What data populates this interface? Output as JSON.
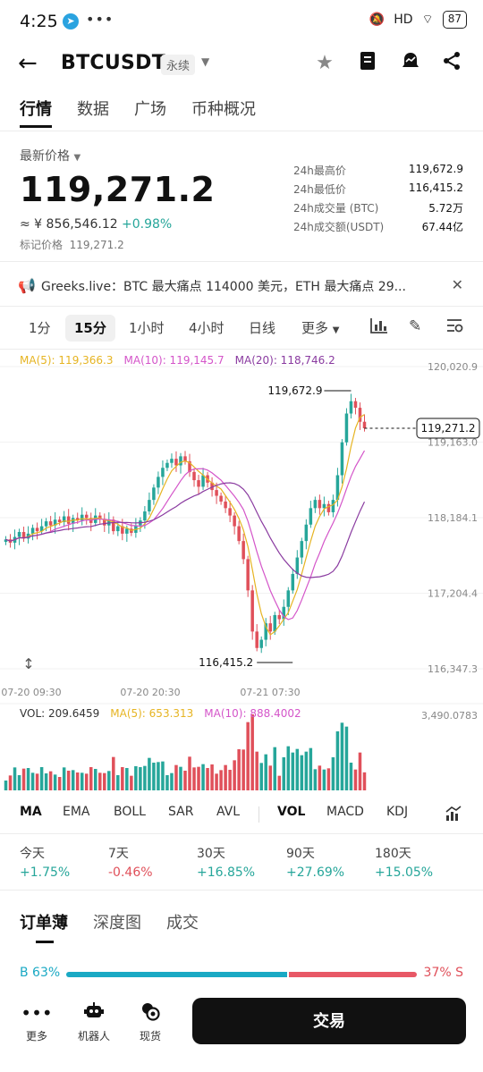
{
  "status_bar": {
    "time": "4:25",
    "battery": "87",
    "signal_text": "HD"
  },
  "header": {
    "symbol": "BTCUSDT",
    "contract_type": "永续"
  },
  "tabs": [
    {
      "label": "行情"
    },
    {
      "label": "数据"
    },
    {
      "label": "广场"
    },
    {
      "label": "币种概况"
    }
  ],
  "ticker": {
    "last_price_label": "最新价格",
    "last_price": "119,271.2",
    "cny_value": "≈ ¥ 856,546.12",
    "change_pct": "+0.98%",
    "mark_price_label": "标记价格",
    "mark_price": "119,271.2",
    "stats": [
      {
        "label": "24h最高价",
        "value": "119,672.9"
      },
      {
        "label": "24h最低价",
        "value": "116,415.2"
      },
      {
        "label": "24h成交量 (BTC)",
        "value": "5.72万"
      },
      {
        "label": "24h成交额(USDT)",
        "value": "67.44亿"
      }
    ]
  },
  "news": {
    "text": "Greeks.live：BTC 最大痛点 114000 美元，ETH 最大痛点 29..."
  },
  "intervals": [
    {
      "label": "1分"
    },
    {
      "label": "15分"
    },
    {
      "label": "1小时"
    },
    {
      "label": "4小时"
    },
    {
      "label": "日线"
    },
    {
      "label": "更多"
    }
  ],
  "active_interval": "15分",
  "ma_legend": {
    "ma5": "MA(5): 119,366.3",
    "ma10": "MA(10): 119,145.7",
    "ma20": "MA(20): 118,746.2"
  },
  "vol_legend": {
    "vol": "VOL: 209.6459",
    "ma5": "MA(5): 653.313",
    "ma10": "MA(10): 888.4002"
  },
  "colors": {
    "up": "#26a69a",
    "down": "#e0505a",
    "ma5": "#e6b422",
    "ma10": "#d455c9",
    "ma20": "#8a3ba0"
  },
  "chart_data": {
    "type": "candlestick",
    "y_axis_labels": [
      "120,020.9",
      "119,163.0",
      "118,184.1",
      "117,204.4",
      "116,347.3"
    ],
    "vol_axis_label": "3,490.0783",
    "x_axis_labels": [
      "07-20 09:30",
      "07-20 20:30",
      "07-21 07:30"
    ],
    "high_annotation": "119,672.9",
    "low_annotation": "116,415.2",
    "current_price_tag": "119,271.2",
    "ylim": [
      116347.3,
      120020.9
    ],
    "close_series": [
      117920,
      117880,
      117950,
      118010,
      117930,
      117990,
      118060,
      118020,
      118080,
      118140,
      118090,
      118160,
      118130,
      118200,
      118110,
      118180,
      118150,
      118220,
      118180,
      118120,
      118210,
      118170,
      118090,
      118160,
      118020,
      118080,
      117990,
      118050,
      118000,
      118090,
      118150,
      118260,
      118400,
      118550,
      118680,
      118790,
      118850,
      118900,
      118820,
      118930,
      118870,
      118740,
      118640,
      118560,
      118700,
      118610,
      118520,
      118450,
      118380,
      118300,
      118210,
      118080,
      117900,
      117680,
      117300,
      116800,
      116600,
      116700,
      116900,
      116800,
      117000,
      116950,
      117100,
      117300,
      117500,
      117700,
      117900,
      118100,
      118300,
      118400,
      118300,
      118350,
      118250,
      118400,
      118700,
      119100,
      119450,
      119600,
      119520,
      119350,
      119271
    ]
  },
  "indicators": [
    {
      "label": "MA"
    },
    {
      "label": "EMA"
    },
    {
      "label": "BOLL"
    },
    {
      "label": "SAR"
    },
    {
      "label": "AVL"
    },
    {
      "label": "VOL"
    },
    {
      "label": "MACD"
    },
    {
      "label": "KDJ"
    }
  ],
  "performance": [
    {
      "period": "今天",
      "value": "+1.75%"
    },
    {
      "period": "7天",
      "value": "-0.46%"
    },
    {
      "period": "30天",
      "value": "+16.85%"
    },
    {
      "period": "90天",
      "value": "+27.69%"
    },
    {
      "period": "180天",
      "value": "+15.05%"
    }
  ],
  "orderbook_tabs": [
    {
      "label": "订单薄"
    },
    {
      "label": "深度图"
    },
    {
      "label": "成交"
    }
  ],
  "ratio": {
    "buy_label": "B 63%",
    "sell_label": "37% S",
    "buy_pct": 63
  },
  "bottom_bar": {
    "more": "更多",
    "bot": "机器人",
    "spot": "现货",
    "trade": "交易"
  }
}
